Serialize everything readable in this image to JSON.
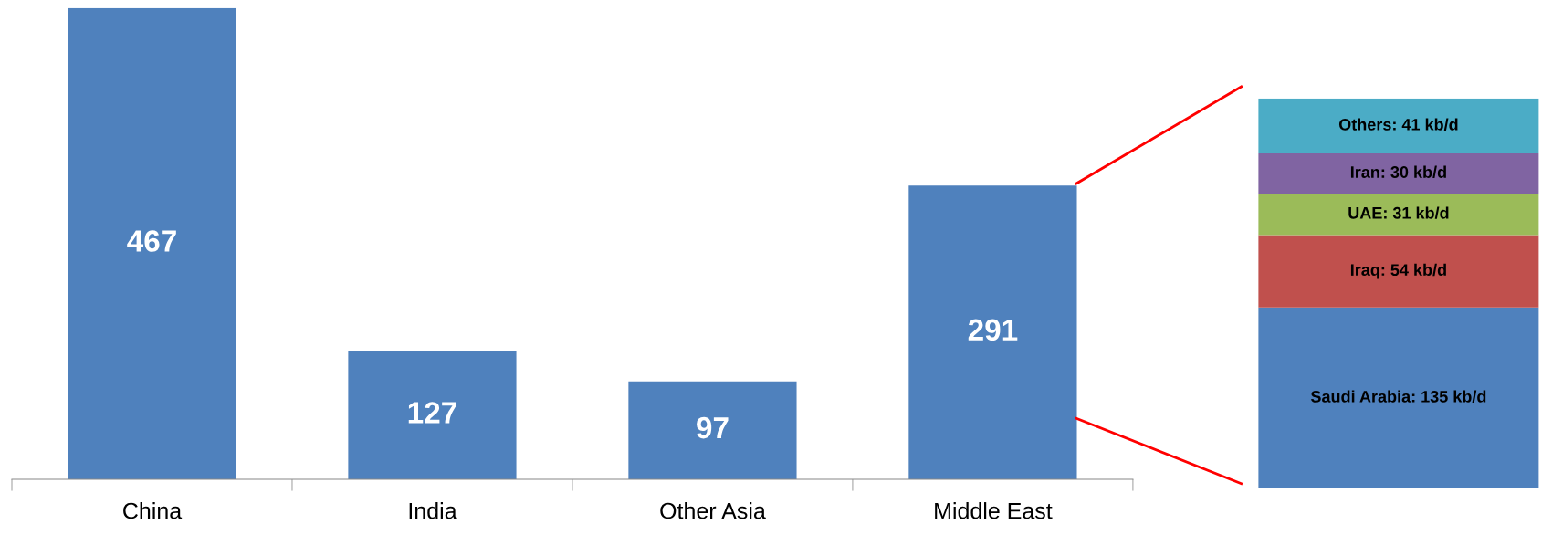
{
  "chart_data": [
    {
      "type": "bar",
      "categories": [
        "China",
        "India",
        "Other Asia",
        "Middle East"
      ],
      "values": [
        467,
        127,
        97,
        291
      ],
      "color": "#4f81bd",
      "data_labels": true
    },
    {
      "type": "bar",
      "stacked": true,
      "categories": [
        null
      ],
      "series": [
        {
          "color": "#4f81bd",
          "values": [
            135
          ],
          "value_labels": [
            "Saudi Arabia: 135 kb/d"
          ]
        },
        {
          "color": "#c0504d",
          "values": [
            54
          ],
          "value_labels": [
            "Iraq: 54 kb/d"
          ]
        },
        {
          "color": "#9bbb59",
          "values": [
            31
          ],
          "value_labels": [
            "UAE: 31 kb/d"
          ]
        },
        {
          "color": "#8064a2",
          "values": [
            30
          ],
          "value_labels": [
            "Iran: 30 kb/d"
          ]
        },
        {
          "color": "#4bacc6",
          "values": [
            41
          ],
          "value_labels": [
            "Others: 41 kb/d"
          ]
        }
      ]
    }
  ]
}
